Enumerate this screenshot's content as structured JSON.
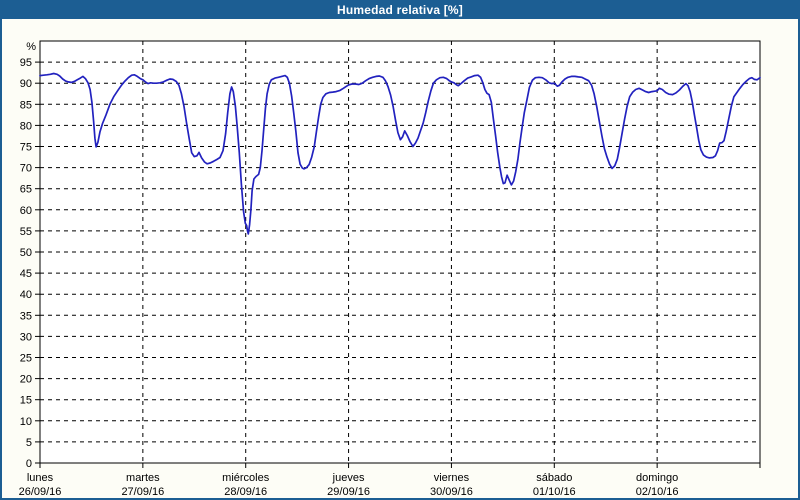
{
  "title": "Humedad relativa [%]",
  "colors": {
    "header": "#1c5e93",
    "border": "#1c5e93",
    "page_bg": "#fdfdf6",
    "plot_bg": "#ffffff",
    "grid": "#000000",
    "frame": "#000000",
    "axis_text": "#000000",
    "title_text": "#ffffff",
    "line": "#2222bf"
  },
  "chart_data": {
    "type": "line",
    "title": "Humedad relativa [%]",
    "ylabel": "%",
    "ylim": [
      0,
      100
    ],
    "ytick_step": 5,
    "ytick_min": 0,
    "ytick_max": 95,
    "grid": "dashed",
    "legend": "none",
    "x_axis": {
      "unit": "hours",
      "range_hours": [
        0,
        168
      ],
      "day_tick_every_hours": 24
    },
    "days": [
      {
        "name": "lunes",
        "date": "26/09/16"
      },
      {
        "name": "martes",
        "date": "27/09/16"
      },
      {
        "name": "miércoles",
        "date": "28/09/16"
      },
      {
        "name": "jueves",
        "date": "29/09/16"
      },
      {
        "name": "viernes",
        "date": "30/09/16"
      },
      {
        "name": "sábado",
        "date": "01/10/16"
      },
      {
        "name": "domingo",
        "date": "02/10/16"
      }
    ],
    "series": [
      {
        "name": "Humedad relativa",
        "color": "#2222bf",
        "points": [
          [
            0,
            91.8
          ],
          [
            0.8,
            91.9
          ],
          [
            1.6,
            92
          ],
          [
            2.4,
            92.1
          ],
          [
            3.2,
            92.3
          ],
          [
            4,
            92.1
          ],
          [
            4.6,
            91.7
          ],
          [
            5.3,
            91
          ],
          [
            6,
            90.5
          ],
          [
            6.6,
            90.3
          ],
          [
            7.3,
            90.2
          ],
          [
            8,
            90.4
          ],
          [
            8.7,
            90.8
          ],
          [
            9.4,
            91.2
          ],
          [
            10,
            91.6
          ],
          [
            10.6,
            91.1
          ],
          [
            11.2,
            90.1
          ],
          [
            11.7,
            88.5
          ],
          [
            12.1,
            85.5
          ],
          [
            12.5,
            81
          ],
          [
            12.8,
            77
          ],
          [
            13.1,
            74.9
          ],
          [
            13.5,
            76
          ],
          [
            14,
            78.5
          ],
          [
            14.6,
            80.5
          ],
          [
            15.4,
            82.5
          ],
          [
            16.3,
            85
          ],
          [
            17.2,
            86.8
          ],
          [
            18.1,
            88.2
          ],
          [
            19,
            89.5
          ],
          [
            19.8,
            90.5
          ],
          [
            20.6,
            91.3
          ],
          [
            21.4,
            91.9
          ],
          [
            22,
            92
          ],
          [
            22.7,
            91.6
          ],
          [
            23.4,
            91.1
          ],
          [
            24,
            90.8
          ],
          [
            24.6,
            90.3
          ],
          [
            25.2,
            89.9
          ],
          [
            25.8,
            90.1
          ],
          [
            26.5,
            90
          ],
          [
            27.2,
            90
          ],
          [
            28,
            90.1
          ],
          [
            28.8,
            90.3
          ],
          [
            29.6,
            90.7
          ],
          [
            30.3,
            91
          ],
          [
            31,
            90.9
          ],
          [
            31.8,
            90.4
          ],
          [
            32.4,
            89.5
          ],
          [
            33,
            87.5
          ],
          [
            33.6,
            84.5
          ],
          [
            34.2,
            80.5
          ],
          [
            34.8,
            77
          ],
          [
            35.4,
            73.5
          ],
          [
            36,
            72.6
          ],
          [
            36.6,
            72.8
          ],
          [
            37.1,
            73.6
          ],
          [
            37.7,
            72.3
          ],
          [
            38.4,
            71.3
          ],
          [
            39,
            70.9
          ],
          [
            39.7,
            71.1
          ],
          [
            40.5,
            71.5
          ],
          [
            41.2,
            71.9
          ],
          [
            42,
            72.4
          ],
          [
            42.7,
            74
          ],
          [
            43.3,
            78
          ],
          [
            43.8,
            83
          ],
          [
            44.3,
            87.5
          ],
          [
            44.7,
            89.1
          ],
          [
            45.1,
            88
          ],
          [
            45.6,
            84.5
          ],
          [
            46,
            80
          ],
          [
            46.5,
            73.5
          ],
          [
            47,
            66
          ],
          [
            47.5,
            59.5
          ],
          [
            47.9,
            56.8
          ],
          [
            48.2,
            56.3
          ],
          [
            48.4,
            55.1
          ],
          [
            48.6,
            54.3
          ],
          [
            48.9,
            56.5
          ],
          [
            49.2,
            60
          ],
          [
            49.5,
            64.5
          ],
          [
            49.9,
            67.3
          ],
          [
            50.4,
            67.9
          ],
          [
            51,
            68.4
          ],
          [
            51.4,
            70
          ],
          [
            51.8,
            74
          ],
          [
            52.2,
            79
          ],
          [
            52.6,
            84
          ],
          [
            53,
            87.5
          ],
          [
            53.5,
            89.8
          ],
          [
            54,
            90.8
          ],
          [
            54.8,
            91.2
          ],
          [
            55.6,
            91.4
          ],
          [
            56.4,
            91.6
          ],
          [
            57.2,
            91.8
          ],
          [
            57.7,
            91.4
          ],
          [
            58.2,
            90
          ],
          [
            58.7,
            87
          ],
          [
            59.2,
            83
          ],
          [
            59.7,
            78.5
          ],
          [
            60.2,
            73.5
          ],
          [
            60.7,
            70.8
          ],
          [
            61.2,
            69.9
          ],
          [
            61.6,
            69.7
          ],
          [
            62.2,
            70
          ],
          [
            62.8,
            70.7
          ],
          [
            63.4,
            72.5
          ],
          [
            64,
            75
          ],
          [
            64.5,
            78.5
          ],
          [
            65,
            82
          ],
          [
            65.5,
            85
          ],
          [
            66,
            86.6
          ],
          [
            66.7,
            87.5
          ],
          [
            67.5,
            87.8
          ],
          [
            68.3,
            87.9
          ],
          [
            69.1,
            88
          ],
          [
            70,
            88.3
          ],
          [
            70.8,
            88.8
          ],
          [
            71.4,
            89.2
          ],
          [
            72,
            89.6
          ],
          [
            72.8,
            89.8
          ],
          [
            73.6,
            89.8
          ],
          [
            74.4,
            89.7
          ],
          [
            75.2,
            90
          ],
          [
            76,
            90.6
          ],
          [
            76.8,
            91.1
          ],
          [
            77.6,
            91.4
          ],
          [
            78.4,
            91.6
          ],
          [
            79.2,
            91.7
          ],
          [
            80,
            91.4
          ],
          [
            80.6,
            90.6
          ],
          [
            81.2,
            89.2
          ],
          [
            81.8,
            87.2
          ],
          [
            82.4,
            84.5
          ],
          [
            83,
            81
          ],
          [
            83.5,
            78.3
          ],
          [
            84.1,
            76.6
          ],
          [
            84.6,
            77.3
          ],
          [
            85.1,
            78.7
          ],
          [
            85.7,
            77.6
          ],
          [
            86.3,
            76.2
          ],
          [
            87,
            75
          ],
          [
            87.6,
            75.8
          ],
          [
            88.2,
            77
          ],
          [
            88.8,
            78.8
          ],
          [
            89.4,
            80.5
          ],
          [
            90,
            83
          ],
          [
            90.6,
            85.8
          ],
          [
            91.2,
            88.2
          ],
          [
            91.8,
            90
          ],
          [
            92.5,
            90.8
          ],
          [
            93.3,
            91.3
          ],
          [
            94.1,
            91.4
          ],
          [
            94.9,
            91.1
          ],
          [
            95.5,
            90.6
          ],
          [
            96,
            90.3
          ],
          [
            96.6,
            90.1
          ],
          [
            97.2,
            89.6
          ],
          [
            97.6,
            89.4
          ],
          [
            98.2,
            89.9
          ],
          [
            99,
            90.6
          ],
          [
            99.8,
            91.2
          ],
          [
            100.6,
            91.5
          ],
          [
            101.4,
            91.8
          ],
          [
            102.2,
            91.9
          ],
          [
            102.8,
            91.4
          ],
          [
            103.3,
            90.2
          ],
          [
            103.8,
            88.5
          ],
          [
            104.3,
            87.6
          ],
          [
            104.8,
            87.3
          ],
          [
            105.3,
            85.5
          ],
          [
            105.8,
            81.5
          ],
          [
            106.3,
            77.5
          ],
          [
            106.8,
            73.5
          ],
          [
            107.3,
            70
          ],
          [
            107.7,
            67.8
          ],
          [
            108.1,
            66.2
          ],
          [
            108.5,
            66.4
          ],
          [
            109,
            68.2
          ],
          [
            109.5,
            67
          ],
          [
            110,
            65.9
          ],
          [
            110.5,
            66.8
          ],
          [
            111,
            69
          ],
          [
            111.5,
            72
          ],
          [
            112,
            76
          ],
          [
            112.5,
            79.5
          ],
          [
            113,
            83
          ],
          [
            113.6,
            86
          ],
          [
            114.2,
            89
          ],
          [
            114.9,
            90.7
          ],
          [
            115.6,
            91.3
          ],
          [
            116.4,
            91.4
          ],
          [
            117.2,
            91.3
          ],
          [
            118,
            90.8
          ],
          [
            118.8,
            90.1
          ],
          [
            119.4,
            89.9
          ],
          [
            120,
            90
          ],
          [
            120.7,
            89.3
          ],
          [
            121.2,
            89.5
          ],
          [
            121.8,
            90.3
          ],
          [
            122.5,
            91
          ],
          [
            123.2,
            91.4
          ],
          [
            124,
            91.6
          ],
          [
            124.8,
            91.6
          ],
          [
            125.6,
            91.5
          ],
          [
            126.4,
            91.4
          ],
          [
            127.2,
            91
          ],
          [
            128,
            90.6
          ],
          [
            128.7,
            89.5
          ],
          [
            129.3,
            87.5
          ],
          [
            129.9,
            84.5
          ],
          [
            130.5,
            81
          ],
          [
            131.1,
            77.5
          ],
          [
            131.7,
            74.5
          ],
          [
            132.3,
            72.5
          ],
          [
            132.9,
            70.8
          ],
          [
            133.5,
            69.8
          ],
          [
            134.1,
            70.4
          ],
          [
            134.7,
            72
          ],
          [
            135.2,
            74.5
          ],
          [
            135.8,
            78
          ],
          [
            136.4,
            81.5
          ],
          [
            137,
            84.5
          ],
          [
            137.6,
            86.8
          ],
          [
            138.3,
            87.9
          ],
          [
            139,
            88.5
          ],
          [
            139.8,
            88.8
          ],
          [
            140.6,
            88.4
          ],
          [
            141.3,
            88
          ],
          [
            142,
            87.8
          ],
          [
            142.8,
            88
          ],
          [
            143.4,
            88.1
          ],
          [
            144,
            88.2
          ],
          [
            144.5,
            88.8
          ],
          [
            145.2,
            88.5
          ],
          [
            146,
            87.8
          ],
          [
            146.8,
            87.4
          ],
          [
            147.6,
            87.3
          ],
          [
            148.4,
            87.7
          ],
          [
            149.2,
            88.4
          ],
          [
            150,
            89.3
          ],
          [
            150.7,
            89.9
          ],
          [
            151.2,
            89.4
          ],
          [
            151.7,
            88
          ],
          [
            152.2,
            85.5
          ],
          [
            152.7,
            82.5
          ],
          [
            153.2,
            79.5
          ],
          [
            153.7,
            76.5
          ],
          [
            154.2,
            74.2
          ],
          [
            154.8,
            73
          ],
          [
            155.5,
            72.5
          ],
          [
            156.2,
            72.3
          ],
          [
            157,
            72.4
          ],
          [
            157.6,
            72.8
          ],
          [
            158.1,
            74
          ],
          [
            158.6,
            75.8
          ],
          [
            159.1,
            75.9
          ],
          [
            159.6,
            76.4
          ],
          [
            160.1,
            78.5
          ],
          [
            160.7,
            81.5
          ],
          [
            161.3,
            84.5
          ],
          [
            161.9,
            86.8
          ],
          [
            162.6,
            87.8
          ],
          [
            163.3,
            88.8
          ],
          [
            164,
            89.7
          ],
          [
            164.8,
            90.5
          ],
          [
            165.5,
            91.1
          ],
          [
            166.1,
            91.3
          ],
          [
            166.7,
            90.9
          ],
          [
            167.3,
            90.8
          ],
          [
            168,
            91.3
          ]
        ]
      }
    ]
  }
}
